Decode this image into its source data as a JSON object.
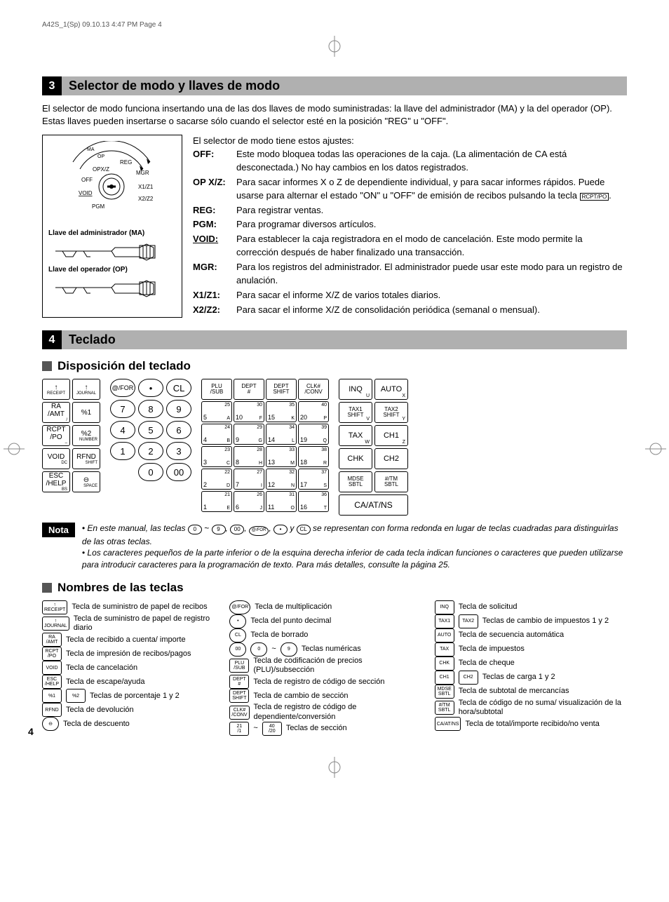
{
  "header": "A42S_1(Sp)  09.10.13  4:47 PM  Page 4",
  "section3": {
    "num": "3",
    "title": "Selector de modo y llaves de modo",
    "intro": "El selector de modo funciona insertando una de las dos llaves de modo suministradas: la llave del administrador (MA) y la del operador (OP). Estas llaves pueden insertarse o sacarse sólo cuando el selector esté en la posición \"REG\" u \"OFF\".",
    "dial": {
      "positions": [
        "MA",
        "OP",
        "REG",
        "OPX/Z",
        "MGR",
        "OFF",
        "X1/Z1",
        "VOID",
        "X2/Z2",
        "PGM"
      ],
      "admin_label": "Llave del administrador (MA)",
      "op_label": "Llave del operador (OP)"
    },
    "defs_intro": "El selector de modo tiene estos ajustes:",
    "defs": [
      {
        "term": "OFF:",
        "desc": "Este modo bloquea todas las operaciones de la caja. (La alimentación de CA está desconectada.) No hay cambios en los datos registrados."
      },
      {
        "term": "OP X/Z:",
        "desc": "Para sacar informes X o Z de dependiente individual, y para sacar informes rápidos. Puede usarse para alternar el estado \"ON\" u \"OFF\" de emisión de recibos pulsando la tecla "
      },
      {
        "term": "REG:",
        "desc": "Para registrar ventas."
      },
      {
        "term": "PGM:",
        "desc": "Para programar diversos artículos."
      },
      {
        "term": "VOID:",
        "u": true,
        "desc": "Para establecer la caja registradora en el modo de cancelación. Este modo permite la corrección después de haber finalizado una transacción."
      },
      {
        "term": "MGR:",
        "desc": "Para los registros del administrador. El administrador puede usar este modo para un registro de anulación."
      },
      {
        "term": "X1/Z1:",
        "desc": "Para sacar el informe X/Z de varios totales diarios."
      },
      {
        "term": "X2/Z2:",
        "desc": "Para sacar el informe X/Z de consolidación periódica (semanal o mensual)."
      }
    ],
    "rcpt_key": "RCPT/PO"
  },
  "section4": {
    "num": "4",
    "title": "Teclado",
    "sub1": "Disposición del teclado",
    "left_keys": [
      {
        "m": "↑",
        "s": "RECEIPT"
      },
      {
        "m": "↑",
        "s": "JOURNAL"
      },
      {
        "m": "RA\n/AMT",
        "sub": "/"
      },
      {
        "m": "%1"
      },
      {
        "m": "RCPT\n/PO",
        "sub": "–"
      },
      {
        "m": "%2",
        "sub": "NUMBER"
      },
      {
        "m": "VOID",
        "sub": "DC"
      },
      {
        "m": "RFND",
        "sub": "SHIFT"
      },
      {
        "m": "ESC\n/HELP",
        "sub": "BS"
      },
      {
        "m": "⊖",
        "sub": "SPACE"
      }
    ],
    "numpad": [
      {
        "t": "@/FOR",
        "sm": true
      },
      {
        "t": "•"
      },
      {
        "t": "CL"
      },
      {
        "t": "7"
      },
      {
        "t": "8"
      },
      {
        "t": "9"
      },
      {
        "t": "4"
      },
      {
        "t": "5"
      },
      {
        "t": "6"
      },
      {
        "t": "1"
      },
      {
        "t": "2"
      },
      {
        "t": "3"
      },
      {
        "blank": true
      },
      {
        "t": "0"
      },
      {
        "t": "00"
      }
    ],
    "dept_head": [
      "PLU\n/SUB",
      "DEPT\n#",
      "DEPT\nSHIFT",
      "CLK#\n/CONV"
    ],
    "dept_rows": [
      [
        {
          "tl": "",
          "tr": "25",
          "bl": "5",
          "br": "A"
        },
        {
          "tl": "",
          "tr": "30",
          "bl": "10",
          "br": "F"
        },
        {
          "tl": "",
          "tr": "35",
          "bl": "15",
          "br": "K"
        },
        {
          "tl": "",
          "tr": "40",
          "bl": "20",
          "br": "P"
        }
      ],
      [
        {
          "tr": "24",
          "bl": "4",
          "br": "B"
        },
        {
          "tr": "29",
          "bl": "9",
          "br": "G"
        },
        {
          "tr": "34",
          "bl": "14",
          "br": "L"
        },
        {
          "tr": "39",
          "bl": "19",
          "br": "Q"
        }
      ],
      [
        {
          "tr": "23",
          "bl": "3",
          "br": "C"
        },
        {
          "tr": "28",
          "bl": "8",
          "br": "H"
        },
        {
          "tr": "33",
          "bl": "13",
          "br": "M"
        },
        {
          "tr": "38",
          "bl": "18",
          "br": "R"
        }
      ],
      [
        {
          "tr": "22",
          "bl": "2",
          "br": "D"
        },
        {
          "tr": "27",
          "bl": "7",
          "br": "I"
        },
        {
          "tr": "32",
          "bl": "12",
          "br": "N"
        },
        {
          "tr": "37",
          "bl": "17",
          "br": "S"
        }
      ],
      [
        {
          "tr": "21",
          "bl": "1",
          "br": "E"
        },
        {
          "tr": "26",
          "bl": "6",
          "br": "J"
        },
        {
          "tr": "31",
          "bl": "11",
          "br": "O"
        },
        {
          "tr": "36",
          "bl": "16",
          "br": "T"
        }
      ]
    ],
    "func_keys": [
      {
        "t": "INQ",
        "s": "U"
      },
      {
        "t": "AUTO",
        "s": "X"
      },
      {
        "t": "TAX1\nSHIFT",
        "sm": true,
        "s": "V"
      },
      {
        "t": "TAX2\nSHIFT",
        "sm": true,
        "s": "Y"
      },
      {
        "t": "TAX",
        "s": "W"
      },
      {
        "t": "CH1",
        "s": "Z"
      },
      {
        "t": "CHK"
      },
      {
        "t": "CH2"
      },
      {
        "t": "MDSE\nSBTL",
        "sm": true
      },
      {
        "t": "#/TM\nSBTL",
        "sm": true
      },
      {
        "t": "CA/AT/NS",
        "wide": true
      }
    ],
    "nota_label": "Nota",
    "nota1a": "• En este manual, las teclas ",
    "nota1b": " se representan con forma redonda en lugar de teclas cuadradas para distinguirlas de las otras teclas.",
    "nota2": "• Los caracteres pequeños de la parte inferior o de la esquina derecha inferior de cada tecla indican funciones o caracteres que pueden utilizarse para introducir caracteres para la programación de texto. Para más detalles, consulte la página 25.",
    "sub2": "Nombres de las teclas",
    "legend": {
      "col1": [
        {
          "k": "↑\nRECEIPT",
          "d": "Tecla de suministro de papel de recibos"
        },
        {
          "k": "↑\nJOURNAL",
          "d": "Tecla de suministro de papel de registro diario"
        },
        {
          "k": "RA\n/AMT",
          "d": "Tecla de recibido a cuenta/ importe"
        },
        {
          "k": "RCPT\n/PO",
          "d": "Tecla de impresión de recibos/pagos"
        },
        {
          "k": "VOID",
          "d": "Tecla de cancelación"
        },
        {
          "k": "ESC\n/HELP",
          "d": "Tecla de escape/ayuda"
        },
        {
          "k": "%1 %2",
          "multi": true,
          "d": "Teclas de porcentaje 1 y 2"
        },
        {
          "k": "RFND",
          "d": "Tecla de devolución"
        },
        {
          "k": "⊖",
          "r": true,
          "d": "Tecla de descuento"
        }
      ],
      "col2": [
        {
          "k": "@/FOR",
          "r": true,
          "d": "Tecla de multiplicación"
        },
        {
          "k": "•",
          "r": true,
          "d": "Tecla del punto decimal"
        },
        {
          "k": "CL",
          "r": true,
          "d": "Tecla de borrado"
        },
        {
          "k": "00 0 ~ 9",
          "r": true,
          "multi": true,
          "d": "Teclas numéricas"
        },
        {
          "k": "PLU\n/SUB",
          "d": "Tecla de codificación de precios (PLU)/subsección"
        },
        {
          "k": "DEPT\n#",
          "d": "Tecla de registro de código de sección"
        },
        {
          "k": "DEPT\nSHIFT",
          "d": "Tecla de cambio de sección"
        },
        {
          "k": "CLK#\n/CONV",
          "d": "Tecla de registro de código de dependiente/conversión"
        },
        {
          "k": "21/1 ~ 40/20",
          "multi": true,
          "d": "Teclas de sección"
        }
      ],
      "col3": [
        {
          "k": "INQ",
          "d": "Tecla de solicitud"
        },
        {
          "k": "TAX1 TAX2",
          "multi": true,
          "d": "Teclas de cambio de impuestos 1 y 2"
        },
        {
          "k": "AUTO",
          "d": "Tecla de secuencia automática"
        },
        {
          "k": "TAX",
          "d": "Tecla de impuestos"
        },
        {
          "k": "CHK",
          "d": "Tecla de cheque"
        },
        {
          "k": "CH1 CH2",
          "multi": true,
          "d": "Teclas de carga 1 y 2"
        },
        {
          "k": "MDSE\nSBTL",
          "d": "Tecla de subtotal de mercancías"
        },
        {
          "k": "#/TM\nSBTL",
          "d": "Tecla de código de no suma/ visualización de la hora/subtotal"
        },
        {
          "k": "CA/AT/NS",
          "d": "Tecla de total/importe recibido/no venta"
        }
      ]
    }
  },
  "page_num": "4"
}
